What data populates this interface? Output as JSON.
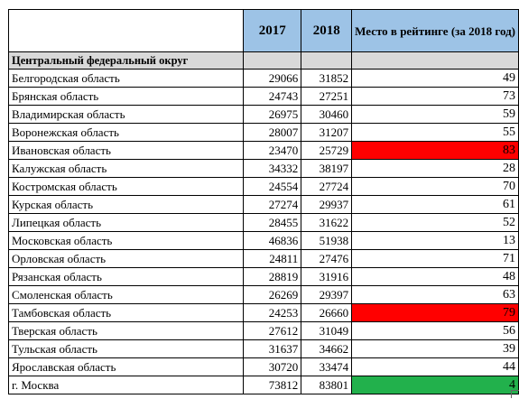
{
  "header": {
    "year_2017": "2017",
    "year_2018": "2018",
    "rank_label": "Место в рейтинге (за 2018 год)"
  },
  "district": {
    "label": "Центральный федеральный округ"
  },
  "colors": {
    "header_bg": "#9dc3e6",
    "district_bg": "#d9d9d9",
    "highlight_red": "#ff0000",
    "highlight_green": "#22b14c"
  },
  "rows": [
    {
      "name": "Белгородская область",
      "v2017": "29066",
      "v2018": "31852",
      "rank": "49",
      "highlight": ""
    },
    {
      "name": "Брянская область",
      "v2017": "24743",
      "v2018": "27251",
      "rank": "73",
      "highlight": ""
    },
    {
      "name": "Владимирская область",
      "v2017": "26975",
      "v2018": "30460",
      "rank": "59",
      "highlight": ""
    },
    {
      "name": "Воронежская область",
      "v2017": "28007",
      "v2018": "31207",
      "rank": "55",
      "highlight": ""
    },
    {
      "name": "Ивановская область",
      "v2017": "23470",
      "v2018": "25729",
      "rank": "83",
      "highlight": "red"
    },
    {
      "name": "Калужская область",
      "v2017": "34332",
      "v2018": "38197",
      "rank": "28",
      "highlight": ""
    },
    {
      "name": "Костромская область",
      "v2017": "24554",
      "v2018": "27724",
      "rank": "70",
      "highlight": ""
    },
    {
      "name": "Курская область",
      "v2017": "27274",
      "v2018": "29937",
      "rank": "61",
      "highlight": ""
    },
    {
      "name": "Липецкая область",
      "v2017": "28455",
      "v2018": "31622",
      "rank": "52",
      "highlight": ""
    },
    {
      "name": "Московская область",
      "v2017": "46836",
      "v2018": "51938",
      "rank": "13",
      "highlight": ""
    },
    {
      "name": "Орловская область",
      "v2017": "24811",
      "v2018": "27476",
      "rank": "71",
      "highlight": ""
    },
    {
      "name": "Рязанская область",
      "v2017": "28819",
      "v2018": "31916",
      "rank": "48",
      "highlight": ""
    },
    {
      "name": "Смоленская область",
      "v2017": "26269",
      "v2018": "29397",
      "rank": "63",
      "highlight": ""
    },
    {
      "name": "Тамбовская область",
      "v2017": "24253",
      "v2018": "26660",
      "rank": "79",
      "highlight": "red"
    },
    {
      "name": "Тверская область",
      "v2017": "27612",
      "v2018": "31049",
      "rank": "56",
      "highlight": ""
    },
    {
      "name": "Тульская область",
      "v2017": "31637",
      "v2018": "34662",
      "rank": "39",
      "highlight": ""
    },
    {
      "name": "Ярославская область",
      "v2017": "30720",
      "v2018": "33474",
      "rank": "44",
      "highlight": ""
    },
    {
      "name": "г. Москва",
      "v2017": "73812",
      "v2018": "83801",
      "rank": "4",
      "highlight": "green"
    }
  ]
}
